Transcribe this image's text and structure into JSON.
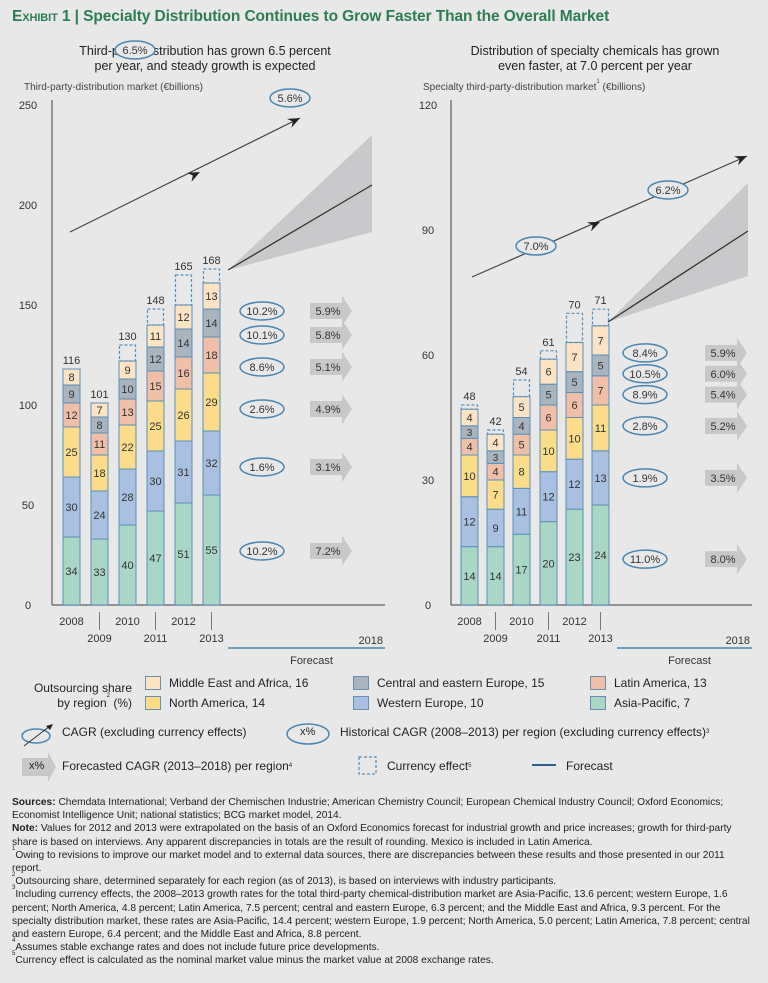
{
  "header": {
    "exhibit": "Exhibit 1",
    "separator": "|",
    "title": "Specialty Distribution Continues to Grow Faster Than the Overall Market"
  },
  "colors": {
    "middle_east_africa": "#fbe3c4",
    "central_eastern_europe": "#a9b4be",
    "latin_america": "#efbfa8",
    "north_america": "#fbdc8a",
    "western_europe": "#a9c0e0",
    "asia_pacific": "#a9d6c5",
    "bar_border": "#5b8fb8",
    "title_green": "#2e7d52",
    "cagr_ellipse": "#4a86b0",
    "forecast_arrow": "#c8c8ca",
    "forecast_band": "#c9c9cb"
  },
  "chart_data": [
    {
      "type": "bar",
      "stacked": true,
      "subtitle_line1": "Third-party distribution has grown 6.5 percent",
      "subtitle_line2": "per year, and steady growth is expected",
      "ylabel": "Third-party-distribution market (€billions)",
      "ylim": [
        0,
        250
      ],
      "yticks": [
        "0",
        "50",
        "100",
        "150",
        "200",
        "250"
      ],
      "categories": [
        "2008",
        "2009",
        "2010",
        "2011",
        "2012",
        "2013"
      ],
      "forecast_end_label": "2018",
      "forecast_label": "Forecast",
      "series": [
        {
          "name": "Asia-Pacific",
          "key": "asia_pacific",
          "values": [
            34,
            33,
            40,
            47,
            51,
            55
          ]
        },
        {
          "name": "Western Europe",
          "key": "western_europe",
          "values": [
            30,
            24,
            28,
            30,
            31,
            32
          ]
        },
        {
          "name": "North America",
          "key": "north_america",
          "values": [
            25,
            18,
            22,
            25,
            26,
            29
          ]
        },
        {
          "name": "Latin America",
          "key": "latin_america",
          "values": [
            12,
            11,
            13,
            15,
            16,
            18
          ]
        },
        {
          "name": "Central and eastern Europe",
          "key": "central_eastern_europe",
          "values": [
            9,
            8,
            10,
            12,
            14,
            14
          ]
        },
        {
          "name": "Middle East and Africa",
          "key": "middle_east_africa",
          "values": [
            8,
            7,
            9,
            11,
            12,
            13
          ]
        }
      ],
      "totals": [
        "116",
        "101",
        "130",
        "148",
        "165",
        "168"
      ],
      "totals_values": [
        116,
        101,
        130,
        148,
        165,
        168
      ],
      "small_labels": [
        null,
        null,
        null,
        null,
        null,
        null
      ],
      "historical_cagr_by_region": [
        {
          "region": "Middle East and Africa",
          "value": "10.2%",
          "level": 147
        },
        {
          "region": "Central and eastern Europe",
          "value": "10.1%",
          "level": 135
        },
        {
          "region": "Latin America",
          "value": "8.6%",
          "level": 119
        },
        {
          "region": "North America",
          "value": "2.6%",
          "level": 98
        },
        {
          "region": "Western Europe",
          "value": "1.6%",
          "level": 69
        },
        {
          "region": "Asia-Pacific",
          "value": "10.2%",
          "level": 27
        }
      ],
      "forecast_cagr_by_region": [
        "5.9%",
        "5.8%",
        "5.1%",
        "4.9%",
        "3.1%",
        "7.2%"
      ],
      "overall_cagr_historical": "6.5%",
      "overall_cagr_forecast": "5.6%"
    },
    {
      "type": "bar",
      "stacked": true,
      "subtitle_line1": "Distribution of specialty chemicals has grown",
      "subtitle_line2": "even faster, at 7.0 percent per year",
      "ylabel": "Specialty third-party-distribution market",
      "ylabel_sup": "1",
      "ylabel_unit": " (€billions)",
      "ylim": [
        0,
        120
      ],
      "yticks": [
        "0",
        "30",
        "60",
        "90",
        "120"
      ],
      "categories": [
        "2008",
        "2009",
        "2010",
        "2011",
        "2012",
        "2013"
      ],
      "forecast_end_label": "2018",
      "forecast_label": "Forecast",
      "series": [
        {
          "name": "Asia-Pacific",
          "key": "asia_pacific",
          "values": [
            14,
            14,
            17,
            20,
            23,
            24
          ]
        },
        {
          "name": "Western Europe",
          "key": "western_europe",
          "values": [
            12,
            9,
            11,
            12,
            12,
            13
          ]
        },
        {
          "name": "North America",
          "key": "north_america",
          "values": [
            10,
            7,
            8,
            10,
            10,
            11
          ]
        },
        {
          "name": "Latin America",
          "key": "latin_america",
          "values": [
            4,
            4,
            5,
            6,
            6,
            7
          ]
        },
        {
          "name": "Central and eastern Europe",
          "key": "central_eastern_europe",
          "values": [
            3,
            3,
            4,
            5,
            5,
            5
          ]
        },
        {
          "name": "Middle East and Africa",
          "key": "middle_east_africa",
          "values": [
            4,
            4,
            5,
            6,
            7,
            7
          ]
        }
      ],
      "totals": [
        "48",
        "42",
        "54",
        "61",
        "70",
        "71"
      ],
      "totals_values": [
        48,
        42,
        54,
        61,
        70,
        71
      ],
      "historical_cagr_by_region": [
        {
          "region": "Middle East and Africa",
          "value": "8.4%",
          "level": 60.5
        },
        {
          "region": "Central and eastern Europe",
          "value": "10.5%",
          "level": 55.5
        },
        {
          "region": "Latin America",
          "value": "8.9%",
          "level": 50.5
        },
        {
          "region": "North America",
          "value": "2.8%",
          "level": 43
        },
        {
          "region": "Western Europe",
          "value": "1.9%",
          "level": 30.5
        },
        {
          "region": "Asia-Pacific",
          "value": "11.0%",
          "level": 11
        }
      ],
      "forecast_cagr_by_region": [
        "5.9%",
        "6.0%",
        "5.4%",
        "5.2%",
        "3.5%",
        "8.0%"
      ],
      "overall_cagr_historical": "7.0%",
      "overall_cagr_forecast": "6.2%"
    }
  ],
  "legend": {
    "outsourcing_title_line1": "Outsourcing share",
    "outsourcing_title_line2": "by region",
    "outsourcing_title_sup": "2",
    "outsourcing_title_unit": " (%)",
    "regions": [
      {
        "label": "Middle East and Africa, 16",
        "key": "middle_east_africa"
      },
      {
        "label": "North America, 14",
        "key": "north_america"
      },
      {
        "label": "Central and eastern Europe, 15",
        "key": "central_eastern_europe"
      },
      {
        "label": "Western Europe, 10",
        "key": "western_europe"
      },
      {
        "label": "Latin America, 13",
        "key": "latin_america"
      },
      {
        "label": "Asia-Pacific, 7",
        "key": "asia_pacific"
      }
    ],
    "cagr_label": "CAGR (excluding currency effects)",
    "historical_symbol": "x%",
    "historical_label": "Historical CAGR (2008–2013) per region (excluding currency effects)",
    "historical_sup": "3",
    "forecast_symbol": "x%",
    "forecast_cagr_label": "Forecasted CAGR (2013–2018) per region",
    "forecast_cagr_sup": "4",
    "currency_label": "Currency effect",
    "currency_sup": "5",
    "forecast_line_label": "Forecast"
  },
  "notes": {
    "sources_label": "Sources:",
    "sources": " Chemdata International; Verband der Chemischen Industrie; American Chemistry Council; European Chemical Industry Council; Oxford Economics; Economist Intelligence Unit; national statistics; BCG market model, 2014.",
    "note_label": "Note:",
    "note": " Values for 2012 and 2013 were extrapolated on the basis of an Oxford Economics forecast for industrial growth and price increases; growth for third-party share is based on interviews. Any apparent discrepancies in totals are the result of rounding. Mexico is included in Latin America.",
    "footnotes": [
      {
        "num": "1",
        "text": "Owing to revisions to improve our market model and to external data sources, there are discrepancies between these results and those presented in our 2011 report."
      },
      {
        "num": "2",
        "text": "Outsourcing share, determined separately for each region (as of 2013), is based on interviews with industry participants."
      },
      {
        "num": "3",
        "text": "Including currency effects, the 2008–2013 growth rates for the total third-party chemical-distribution market are Asia-Pacific, 13.6 percent; western Europe, 1.6 percent; North America, 4.8 percent; Latin America, 7.5 percent; central and eastern Europe, 6.3 percent; and the Middle East and Africa, 9.3 percent. For the specialty distribution market, these rates are Asia-Pacific, 14.4 percent; western Europe, 1.9 percent; North America, 5.0 percent; Latin America, 7.8 percent; central and eastern Europe, 6.4 percent; and the Middle East and Africa, 8.8 percent."
      },
      {
        "num": "4",
        "text": "Assumes stable exchange rates and does not include future price developments."
      },
      {
        "num": "5",
        "text": "Currency effect is calculated as the nominal market value minus the market value at 2008 exchange rates."
      }
    ]
  }
}
